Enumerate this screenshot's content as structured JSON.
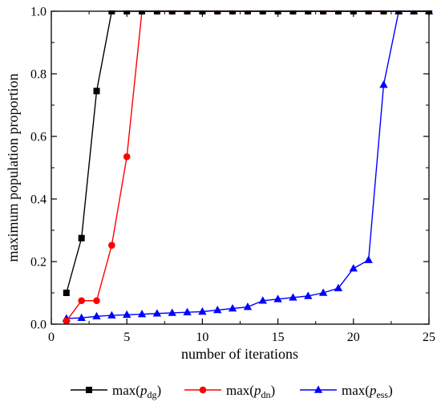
{
  "chart_data": {
    "type": "line",
    "xlabel": "number of iterations",
    "ylabel": "maximum population proportion",
    "xlim": [
      0,
      25
    ],
    "ylim": [
      0,
      1.0
    ],
    "x_ticks": [
      0,
      5,
      10,
      15,
      20,
      25
    ],
    "y_ticks": [
      0.0,
      0.2,
      0.4,
      0.6,
      0.8,
      1.0
    ],
    "x_tick_labels": [
      "0",
      "5",
      "10",
      "15",
      "20",
      "25"
    ],
    "y_tick_labels": [
      "0.0",
      "0.2",
      "0.4",
      "0.6",
      "0.8",
      "1.0"
    ],
    "grid": false,
    "legend_position": "bottom",
    "series": [
      {
        "name": "max(p_dg)",
        "legend_prefix": "max(",
        "legend_italic": "p",
        "legend_sub": "dg",
        "legend_suffix": ")",
        "color": "#000000",
        "marker": "square",
        "x": [
          1,
          2,
          3,
          4,
          5,
          6,
          7,
          8,
          9,
          10,
          11,
          12,
          13,
          14,
          15,
          16,
          17,
          18,
          19,
          20,
          21,
          22,
          23,
          24,
          25
        ],
        "values": [
          0.1,
          0.275,
          0.745,
          1.0,
          1.0,
          1.0,
          1.0,
          1.0,
          1.0,
          1.0,
          1.0,
          1.0,
          1.0,
          1.0,
          1.0,
          1.0,
          1.0,
          1.0,
          1.0,
          1.0,
          1.0,
          1.0,
          1.0,
          1.0,
          1.0
        ]
      },
      {
        "name": "max(p_dn)",
        "legend_prefix": "max(",
        "legend_italic": "p",
        "legend_sub": "dn",
        "legend_suffix": ")",
        "color": "#ff0000",
        "marker": "circle",
        "x": [
          1,
          2,
          3,
          4,
          5,
          6,
          7,
          8,
          9,
          10,
          11,
          12,
          13,
          14,
          15,
          16,
          17,
          18,
          19,
          20,
          21,
          22,
          23,
          24,
          25
        ],
        "values": [
          0.01,
          0.075,
          0.075,
          0.252,
          0.535,
          1.0,
          1.0,
          1.0,
          1.0,
          1.0,
          1.0,
          1.0,
          1.0,
          1.0,
          1.0,
          1.0,
          1.0,
          1.0,
          1.0,
          1.0,
          1.0,
          1.0,
          1.0,
          1.0,
          1.0
        ]
      },
      {
        "name": "max(p_ess)",
        "legend_prefix": "max(",
        "legend_italic": "p",
        "legend_sub": "ess",
        "legend_suffix": ")",
        "color": "#0000ff",
        "marker": "triangle",
        "x": [
          1,
          2,
          3,
          4,
          5,
          6,
          7,
          8,
          9,
          10,
          11,
          12,
          13,
          14,
          15,
          16,
          17,
          18,
          19,
          20,
          21,
          22,
          23,
          24,
          25
        ],
        "values": [
          0.018,
          0.02,
          0.025,
          0.028,
          0.03,
          0.032,
          0.034,
          0.036,
          0.038,
          0.04,
          0.045,
          0.05,
          0.055,
          0.075,
          0.08,
          0.085,
          0.09,
          0.1,
          0.115,
          0.178,
          0.205,
          0.765,
          1.0,
          1.0,
          1.0
        ]
      }
    ]
  }
}
